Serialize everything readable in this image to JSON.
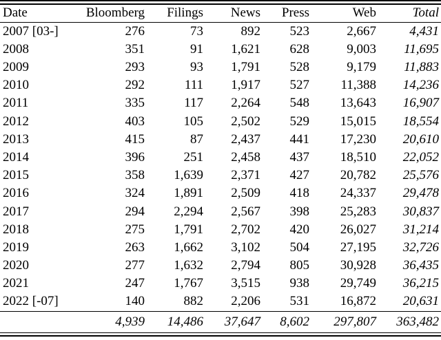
{
  "colors": {
    "text": "#000000",
    "background": "#ffffff",
    "rule": "#000000"
  },
  "table": {
    "columns": [
      {
        "id": "date",
        "label": "Date",
        "align": "left",
        "italic": false
      },
      {
        "id": "bloomberg",
        "label": "Bloomberg",
        "align": "right",
        "italic": false
      },
      {
        "id": "filings",
        "label": "Filings",
        "align": "right",
        "italic": false
      },
      {
        "id": "news",
        "label": "News",
        "align": "right",
        "italic": false
      },
      {
        "id": "press",
        "label": "Press",
        "align": "right",
        "italic": false
      },
      {
        "id": "web",
        "label": "Web",
        "align": "right",
        "italic": false
      },
      {
        "id": "total",
        "label": "Total",
        "align": "right",
        "italic": true
      }
    ],
    "rows": [
      [
        "2007 [03-]",
        "276",
        "73",
        "892",
        "523",
        "2,667",
        "4,431"
      ],
      [
        "2008",
        "351",
        "91",
        "1,621",
        "628",
        "9,003",
        "11,695"
      ],
      [
        "2009",
        "293",
        "93",
        "1,791",
        "528",
        "9,179",
        "11,883"
      ],
      [
        "2010",
        "292",
        "111",
        "1,917",
        "527",
        "11,388",
        "14,236"
      ],
      [
        "2011",
        "335",
        "117",
        "2,264",
        "548",
        "13,643",
        "16,907"
      ],
      [
        "2012",
        "403",
        "105",
        "2,502",
        "529",
        "15,015",
        "18,554"
      ],
      [
        "2013",
        "415",
        "87",
        "2,437",
        "441",
        "17,230",
        "20,610"
      ],
      [
        "2014",
        "396",
        "251",
        "2,458",
        "437",
        "18,510",
        "22,052"
      ],
      [
        "2015",
        "358",
        "1,639",
        "2,371",
        "427",
        "20,782",
        "25,576"
      ],
      [
        "2016",
        "324",
        "1,891",
        "2,509",
        "418",
        "24,337",
        "29,478"
      ],
      [
        "2017",
        "294",
        "2,294",
        "2,567",
        "398",
        "25,283",
        "30,837"
      ],
      [
        "2018",
        "275",
        "1,791",
        "2,702",
        "420",
        "26,027",
        "31,214"
      ],
      [
        "2019",
        "263",
        "1,662",
        "3,102",
        "504",
        "27,195",
        "32,726"
      ],
      [
        "2020",
        "277",
        "1,632",
        "2,794",
        "805",
        "30,928",
        "36,435"
      ],
      [
        "2021",
        "247",
        "1,767",
        "3,515",
        "938",
        "29,749",
        "36,215"
      ],
      [
        "2022 [-07]",
        "140",
        "882",
        "2,206",
        "531",
        "16,872",
        "20,631"
      ]
    ],
    "totals": [
      "",
      "4,939",
      "14,486",
      "37,647",
      "8,602",
      "297,807",
      "363,482"
    ]
  },
  "chart_data": {
    "type": "table",
    "title": "",
    "columns": [
      "Date",
      "Bloomberg",
      "Filings",
      "News",
      "Press",
      "Web",
      "Total"
    ],
    "rows": [
      [
        "2007 [03-]",
        276,
        73,
        892,
        523,
        2667,
        4431
      ],
      [
        "2008",
        351,
        91,
        1621,
        628,
        9003,
        11695
      ],
      [
        "2009",
        293,
        93,
        1791,
        528,
        9179,
        11883
      ],
      [
        "2010",
        292,
        111,
        1917,
        527,
        11388,
        14236
      ],
      [
        "2011",
        335,
        117,
        2264,
        548,
        13643,
        16907
      ],
      [
        "2012",
        403,
        105,
        2502,
        529,
        15015,
        18554
      ],
      [
        "2013",
        415,
        87,
        2437,
        441,
        17230,
        20610
      ],
      [
        "2014",
        396,
        251,
        2458,
        437,
        18510,
        22052
      ],
      [
        "2015",
        358,
        1639,
        2371,
        427,
        20782,
        25576
      ],
      [
        "2016",
        324,
        1891,
        2509,
        418,
        24337,
        29478
      ],
      [
        "2017",
        294,
        2294,
        2567,
        398,
        25283,
        30837
      ],
      [
        "2018",
        275,
        1791,
        2702,
        420,
        26027,
        31214
      ],
      [
        "2019",
        263,
        1662,
        3102,
        504,
        27195,
        32726
      ],
      [
        "2020",
        277,
        1632,
        2794,
        805,
        30928,
        36435
      ],
      [
        "2021",
        247,
        1767,
        3515,
        938,
        29749,
        36215
      ],
      [
        "2022 [-07]",
        140,
        882,
        2206,
        531,
        16872,
        20631
      ]
    ],
    "totals_row": [
      null,
      4939,
      14486,
      37647,
      8602,
      297807,
      363482
    ]
  }
}
